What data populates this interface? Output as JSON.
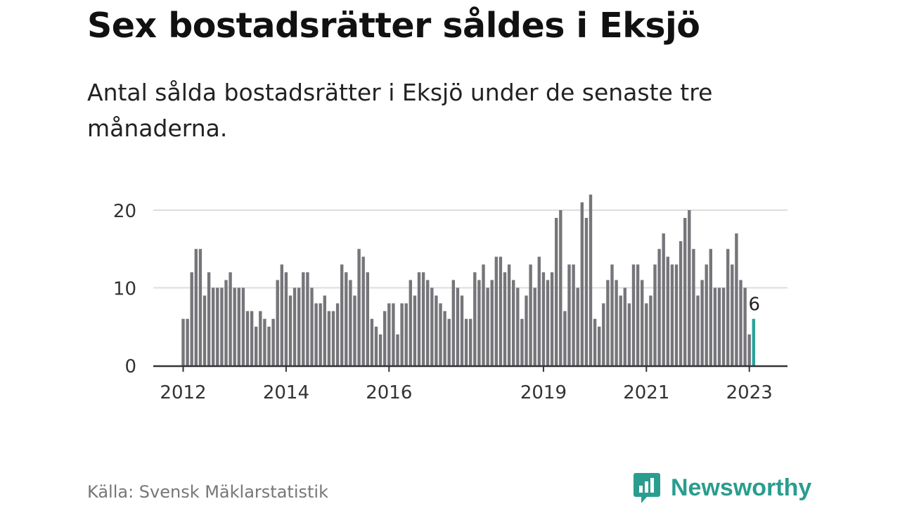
{
  "title": "Sex bostadsrätter såldes i Eksjö",
  "subtitle": "Antal sålda bostadsrätter i Eksjö under de senaste tre månaderna.",
  "source": "Källa: Svensk Mäklarstatistik",
  "brand": "Newsworthy",
  "colors": {
    "bar": "#76757a",
    "highlight": "#2aa39a",
    "brand": "#2a9d8f",
    "grid": "#dddddd",
    "axis": "#333333"
  },
  "chart_data": {
    "type": "bar",
    "title": "Sex bostadsrätter såldes i Eksjö",
    "xlabel": "",
    "ylabel": "",
    "ylim": [
      0,
      22
    ],
    "yticks": [
      0,
      10,
      20
    ],
    "x_start": "2012-01",
    "x_tick_labels": [
      {
        "label": "2012",
        "index": 0
      },
      {
        "label": "2014",
        "index": 24
      },
      {
        "label": "2016",
        "index": 48
      },
      {
        "label": "2019",
        "index": 84
      },
      {
        "label": "2021",
        "index": 108
      },
      {
        "label": "2023",
        "index": 132
      }
    ],
    "values": [
      6,
      6,
      12,
      15,
      15,
      9,
      12,
      10,
      10,
      10,
      11,
      12,
      10,
      10,
      10,
      7,
      7,
      5,
      7,
      6,
      5,
      6,
      11,
      13,
      12,
      9,
      10,
      10,
      12,
      12,
      10,
      8,
      8,
      9,
      7,
      7,
      8,
      13,
      12,
      11,
      9,
      15,
      14,
      12,
      6,
      5,
      4,
      7,
      8,
      8,
      4,
      8,
      8,
      11,
      9,
      12,
      12,
      11,
      10,
      9,
      8,
      7,
      6,
      11,
      10,
      9,
      6,
      6,
      12,
      11,
      13,
      10,
      11,
      14,
      14,
      12,
      13,
      11,
      10,
      6,
      9,
      13,
      10,
      14,
      12,
      11,
      12,
      19,
      20,
      7,
      13,
      13,
      10,
      21,
      19,
      22,
      6,
      5,
      8,
      11,
      13,
      11,
      9,
      10,
      8,
      13,
      13,
      11,
      8,
      9,
      13,
      15,
      17,
      14,
      13,
      13,
      16,
      19,
      20,
      15,
      9,
      11,
      13,
      15,
      10,
      10,
      10,
      15,
      13,
      17,
      11,
      10,
      4,
      6
    ],
    "highlight_index": 133,
    "highlight_label": "6"
  }
}
